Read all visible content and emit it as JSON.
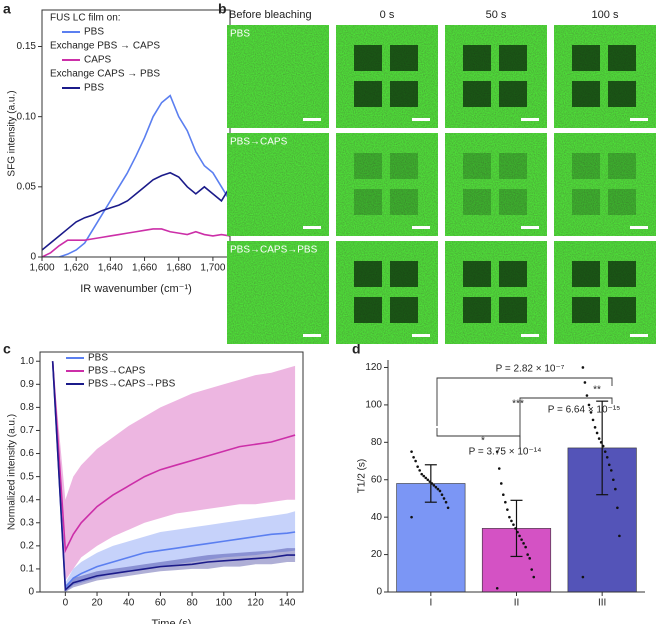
{
  "chart_data": [
    {
      "type": "line",
      "panel": "a",
      "xlabel": "IR wavenumber (cm⁻¹)",
      "ylabel": "SFG intensity (a.u.)",
      "legend_title": "FUS LC film on:",
      "legend_notes": [
        "Exchange PBS → CAPS",
        "Exchange CAPS → PBS"
      ],
      "x": [
        1600,
        1605,
        1610,
        1615,
        1620,
        1625,
        1630,
        1635,
        1640,
        1645,
        1650,
        1655,
        1660,
        1665,
        1670,
        1675,
        1680,
        1685,
        1690,
        1695,
        1700,
        1705,
        1710
      ],
      "series": [
        {
          "name": "PBS",
          "color": "#5b7ff0",
          "values": [
            0,
            0,
            0,
            0.002,
            0.005,
            0.01,
            0.02,
            0.03,
            0.04,
            0.05,
            0.06,
            0.072,
            0.085,
            0.1,
            0.11,
            0.115,
            0.1,
            0.09,
            0.075,
            0.065,
            0.06,
            0.05,
            0.04
          ]
        },
        {
          "name": "CAPS",
          "color": "#cc2fa8",
          "values": [
            0,
            0.003,
            0.008,
            0.012,
            0.012,
            0.012,
            0.013,
            0.014,
            0.015,
            0.016,
            0.017,
            0.018,
            0.019,
            0.02,
            0.02,
            0.018,
            0.017,
            0.016,
            0.018,
            0.016,
            0.015,
            0.016,
            0.015
          ]
        },
        {
          "name": "PBS",
          "color": "#1b1b8a",
          "values": [
            0.005,
            0.01,
            0.015,
            0.02,
            0.025,
            0.028,
            0.03,
            0.033,
            0.035,
            0.037,
            0.04,
            0.045,
            0.05,
            0.055,
            0.058,
            0.06,
            0.057,
            0.05,
            0.045,
            0.05,
            0.045,
            0.04,
            0.05
          ]
        }
      ],
      "xlim": [
        1600,
        1710
      ],
      "ylim": [
        0,
        0.176
      ],
      "xticks": [
        {
          "value": 1600,
          "label": "1,600"
        },
        {
          "value": 1620,
          "label": "1,620"
        },
        {
          "value": 1640,
          "label": "1,640"
        },
        {
          "value": 1660,
          "label": "1,660"
        },
        {
          "value": 1680,
          "label": "1,680"
        },
        {
          "value": 1700,
          "label": "1,700"
        }
      ],
      "yticks": [
        0,
        0.05,
        {
          "value": 0.1,
          "label": "0.10"
        },
        0.15
      ]
    },
    {
      "type": "line",
      "panel": "c",
      "xlabel": "Time (s)",
      "ylabel": "Normalized intensity (a.u.)",
      "x": [
        -8,
        0,
        5,
        10,
        20,
        30,
        40,
        50,
        60,
        70,
        80,
        90,
        100,
        110,
        120,
        130,
        140,
        145
      ],
      "series": [
        {
          "name": "PBS",
          "color": "#5b7ff0",
          "values": [
            1.0,
            0.02,
            0.06,
            0.08,
            0.11,
            0.13,
            0.15,
            0.17,
            0.18,
            0.19,
            0.2,
            0.21,
            0.22,
            0.23,
            0.24,
            0.25,
            0.255,
            0.26
          ],
          "lower": [
            1.0,
            0.0,
            0.03,
            0.04,
            0.06,
            0.08,
            0.09,
            0.1,
            0.11,
            0.12,
            0.13,
            0.14,
            0.15,
            0.155,
            0.16,
            0.17,
            0.175,
            0.18
          ],
          "upper": [
            1.0,
            0.04,
            0.1,
            0.13,
            0.17,
            0.2,
            0.22,
            0.24,
            0.26,
            0.27,
            0.28,
            0.29,
            0.3,
            0.31,
            0.32,
            0.33,
            0.34,
            0.35
          ]
        },
        {
          "name": "PBS→CAPS",
          "color": "#cc2fa8",
          "values": [
            1.0,
            0.18,
            0.25,
            0.3,
            0.37,
            0.42,
            0.46,
            0.5,
            0.53,
            0.55,
            0.57,
            0.59,
            0.61,
            0.63,
            0.64,
            0.65,
            0.67,
            0.68
          ],
          "lower": [
            1.0,
            0.05,
            0.1,
            0.15,
            0.2,
            0.24,
            0.27,
            0.3,
            0.32,
            0.34,
            0.35,
            0.36,
            0.37,
            0.38,
            0.38,
            0.39,
            0.4,
            0.4
          ],
          "upper": [
            1.0,
            0.4,
            0.5,
            0.55,
            0.62,
            0.67,
            0.72,
            0.76,
            0.8,
            0.83,
            0.86,
            0.88,
            0.9,
            0.92,
            0.94,
            0.95,
            0.97,
            0.98
          ]
        },
        {
          "name": "PBS→CAPS→PBS",
          "color": "#1b1b8a",
          "values": [
            1.0,
            0.01,
            0.04,
            0.05,
            0.07,
            0.08,
            0.09,
            0.1,
            0.11,
            0.115,
            0.12,
            0.13,
            0.135,
            0.14,
            0.145,
            0.15,
            0.16,
            0.16
          ],
          "lower": [
            1.0,
            0.0,
            0.02,
            0.03,
            0.05,
            0.06,
            0.07,
            0.08,
            0.09,
            0.095,
            0.1,
            0.1,
            0.11,
            0.11,
            0.12,
            0.12,
            0.13,
            0.13
          ],
          "upper": [
            1.0,
            0.03,
            0.06,
            0.07,
            0.09,
            0.1,
            0.11,
            0.12,
            0.13,
            0.14,
            0.15,
            0.16,
            0.165,
            0.17,
            0.175,
            0.18,
            0.19,
            0.19
          ]
        }
      ],
      "xlim": [
        -16,
        150
      ],
      "ylim": [
        0,
        1.04
      ],
      "xticks": [
        0,
        20,
        40,
        60,
        80,
        100,
        120,
        140
      ],
      "yticks": [
        0,
        0.1,
        0.2,
        0.3,
        0.4,
        0.5,
        0.6,
        0.7,
        0.8,
        0.9,
        {
          "value": 1,
          "label": "1.0"
        }
      ]
    },
    {
      "type": "bar",
      "panel": "d",
      "ylabel": "T1/2 (s)",
      "categories": [
        "I",
        "II",
        "III"
      ],
      "values": [
        58,
        34,
        77
      ],
      "errors": [
        10,
        15,
        25
      ],
      "colors": [
        "#7b96f5",
        "#d452c4",
        "#5454b8"
      ],
      "points": [
        [
          40,
          45,
          48,
          50,
          52,
          54,
          55,
          56,
          57,
          58,
          59,
          60,
          61,
          62,
          63,
          65,
          67,
          70,
          72,
          75
        ],
        [
          2,
          8,
          12,
          18,
          20,
          24,
          26,
          28,
          30,
          32,
          34,
          36,
          38,
          40,
          44,
          48,
          52,
          58,
          66,
          75
        ],
        [
          8,
          30,
          45,
          55,
          60,
          65,
          68,
          72,
          75,
          78,
          80,
          82,
          85,
          88,
          92,
          96,
          100,
          105,
          112,
          120
        ]
      ],
      "annotations": [
        "P = 2.82 × 10⁻⁷",
        "***",
        "P = 6.64 × 10⁻¹⁵",
        "**",
        "*",
        "P = 3.75 × 10⁻¹⁴"
      ],
      "ylim": [
        0,
        124
      ],
      "yticks": [
        0,
        20,
        40,
        60,
        80,
        100,
        120
      ]
    }
  ],
  "panel_b": {
    "letter": "b",
    "columns": [
      "Before bleaching",
      "0 s",
      "50 s",
      "100 s"
    ],
    "rows": [
      "PBS",
      "PBS→CAPS",
      "PBS→CAPS→PBS"
    ]
  }
}
